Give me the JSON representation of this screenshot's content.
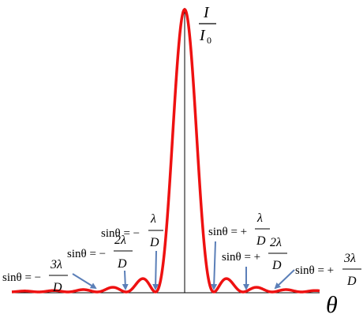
{
  "axes": {
    "y_label_numerator": "I",
    "y_label_denominator_base": "I",
    "y_label_denominator_sub": "0",
    "x_label": "θ"
  },
  "colors": {
    "curve": "#ee1111",
    "axis": "#000000",
    "arrow": "#5b7fb8"
  },
  "annotations": [
    {
      "id": "neg1",
      "prefix": "sinθ = −",
      "numerator": "λ",
      "denominator": "D"
    },
    {
      "id": "neg2",
      "prefix": "sinθ = −",
      "numerator": "2λ",
      "denominator": "D"
    },
    {
      "id": "neg3",
      "prefix": "sinθ = −",
      "numerator": "3λ",
      "denominator": "D"
    },
    {
      "id": "pos1",
      "prefix": "sinθ = +",
      "numerator": "λ",
      "denominator": "D"
    },
    {
      "id": "pos2",
      "prefix": "sinθ = +",
      "numerator": "2λ",
      "denominator": "D"
    },
    {
      "id": "pos3",
      "prefix": "sinθ = +",
      "numerator": "3λ",
      "denominator": "D"
    }
  ],
  "curve_model": {
    "function": "sinc^2",
    "minima_orders": [
      -3,
      -2,
      -1,
      1,
      2,
      3
    ]
  }
}
